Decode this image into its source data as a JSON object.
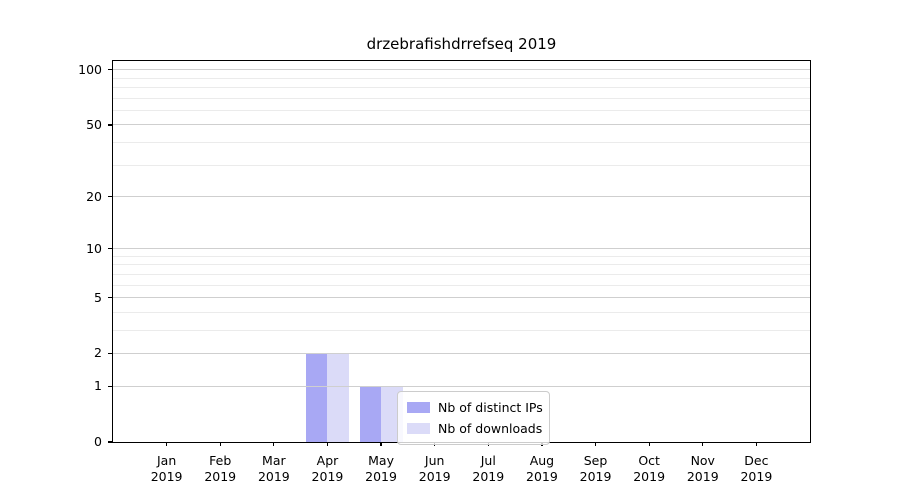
{
  "title": "drzebrafishdrrefseq 2019",
  "chart_data": {
    "type": "bar",
    "title": "drzebrafishdrrefseq 2019",
    "categories": [
      "Jan 2019",
      "Feb 2019",
      "Mar 2019",
      "Apr 2019",
      "May 2019",
      "Jun 2019",
      "Jul 2019",
      "Aug 2019",
      "Sep 2019",
      "Oct 2019",
      "Nov 2019",
      "Dec 2019"
    ],
    "x_tick_labels": [
      {
        "line1": "Jan",
        "line2": "2019"
      },
      {
        "line1": "Feb",
        "line2": "2019"
      },
      {
        "line1": "Mar",
        "line2": "2019"
      },
      {
        "line1": "Apr",
        "line2": "2019"
      },
      {
        "line1": "May",
        "line2": "2019"
      },
      {
        "line1": "Jun",
        "line2": "2019"
      },
      {
        "line1": "Jul",
        "line2": "2019"
      },
      {
        "line1": "Aug",
        "line2": "2019"
      },
      {
        "line1": "Sep",
        "line2": "2019"
      },
      {
        "line1": "Oct",
        "line2": "2019"
      },
      {
        "line1": "Nov",
        "line2": "2019"
      },
      {
        "line1": "Dec",
        "line2": "2019"
      }
    ],
    "series": [
      {
        "name": "Nb of distinct IPs",
        "color": "#a8a8f4",
        "values": [
          0,
          0,
          0,
          2,
          1,
          0,
          0,
          0,
          0,
          0,
          0,
          0
        ]
      },
      {
        "name": "Nb of downloads",
        "color": "#dbdbf8",
        "values": [
          0,
          0,
          0,
          2,
          1,
          0,
          0,
          0,
          0,
          0,
          0,
          0
        ]
      }
    ],
    "y_scale": "log1p",
    "y_major_ticks": [
      0,
      1,
      2,
      5,
      10,
      20,
      50,
      100
    ],
    "y_minor_ticks": [
      3,
      4,
      6,
      7,
      8,
      9,
      30,
      40,
      60,
      70,
      80,
      90
    ],
    "ylim": [
      0,
      112
    ],
    "grid": true,
    "legend_position": "lower center",
    "colors": {
      "grid_major": "#cfcfcf",
      "grid_minor": "#ebebeb",
      "spine": "#000000",
      "background": "#ffffff"
    }
  }
}
